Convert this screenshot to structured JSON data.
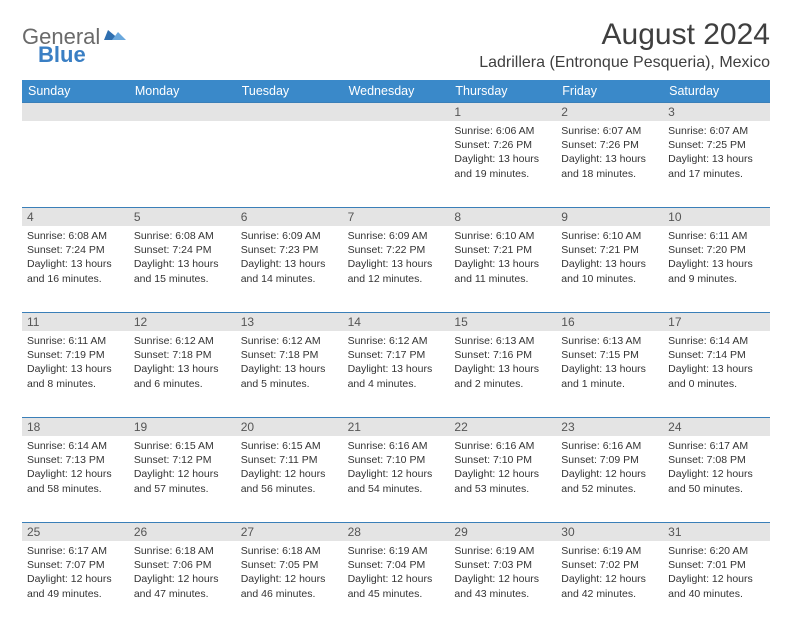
{
  "brand": {
    "part1": "General",
    "part2": "Blue"
  },
  "title": "August 2024",
  "location": "Ladrillera (Entronque Pesqueria), Mexico",
  "colors": {
    "header_bg": "#3a89c9",
    "header_text": "#ffffff",
    "daynum_bg": "#e4e4e4",
    "row_border": "#3a7fb8",
    "logo_gray": "#6a6a6a",
    "logo_blue": "#3a7fc4",
    "body_text": "#333333"
  },
  "typography": {
    "title_fontsize": 30,
    "location_fontsize": 16,
    "dayhead_fontsize": 12.5,
    "daynum_fontsize": 12,
    "cell_fontsize": 10.5
  },
  "day_headers": [
    "Sunday",
    "Monday",
    "Tuesday",
    "Wednesday",
    "Thursday",
    "Friday",
    "Saturday"
  ],
  "weeks": [
    {
      "nums": [
        "",
        "",
        "",
        "",
        "1",
        "2",
        "3"
      ],
      "cells": [
        null,
        null,
        null,
        null,
        {
          "sunrise": "6:06 AM",
          "sunset": "7:26 PM",
          "daylight": "13 hours and 19 minutes."
        },
        {
          "sunrise": "6:07 AM",
          "sunset": "7:26 PM",
          "daylight": "13 hours and 18 minutes."
        },
        {
          "sunrise": "6:07 AM",
          "sunset": "7:25 PM",
          "daylight": "13 hours and 17 minutes."
        }
      ]
    },
    {
      "nums": [
        "4",
        "5",
        "6",
        "7",
        "8",
        "9",
        "10"
      ],
      "cells": [
        {
          "sunrise": "6:08 AM",
          "sunset": "7:24 PM",
          "daylight": "13 hours and 16 minutes."
        },
        {
          "sunrise": "6:08 AM",
          "sunset": "7:24 PM",
          "daylight": "13 hours and 15 minutes."
        },
        {
          "sunrise": "6:09 AM",
          "sunset": "7:23 PM",
          "daylight": "13 hours and 14 minutes."
        },
        {
          "sunrise": "6:09 AM",
          "sunset": "7:22 PM",
          "daylight": "13 hours and 12 minutes."
        },
        {
          "sunrise": "6:10 AM",
          "sunset": "7:21 PM",
          "daylight": "13 hours and 11 minutes."
        },
        {
          "sunrise": "6:10 AM",
          "sunset": "7:21 PM",
          "daylight": "13 hours and 10 minutes."
        },
        {
          "sunrise": "6:11 AM",
          "sunset": "7:20 PM",
          "daylight": "13 hours and 9 minutes."
        }
      ]
    },
    {
      "nums": [
        "11",
        "12",
        "13",
        "14",
        "15",
        "16",
        "17"
      ],
      "cells": [
        {
          "sunrise": "6:11 AM",
          "sunset": "7:19 PM",
          "daylight": "13 hours and 8 minutes."
        },
        {
          "sunrise": "6:12 AM",
          "sunset": "7:18 PM",
          "daylight": "13 hours and 6 minutes."
        },
        {
          "sunrise": "6:12 AM",
          "sunset": "7:18 PM",
          "daylight": "13 hours and 5 minutes."
        },
        {
          "sunrise": "6:12 AM",
          "sunset": "7:17 PM",
          "daylight": "13 hours and 4 minutes."
        },
        {
          "sunrise": "6:13 AM",
          "sunset": "7:16 PM",
          "daylight": "13 hours and 2 minutes."
        },
        {
          "sunrise": "6:13 AM",
          "sunset": "7:15 PM",
          "daylight": "13 hours and 1 minute."
        },
        {
          "sunrise": "6:14 AM",
          "sunset": "7:14 PM",
          "daylight": "13 hours and 0 minutes."
        }
      ]
    },
    {
      "nums": [
        "18",
        "19",
        "20",
        "21",
        "22",
        "23",
        "24"
      ],
      "cells": [
        {
          "sunrise": "6:14 AM",
          "sunset": "7:13 PM",
          "daylight": "12 hours and 58 minutes."
        },
        {
          "sunrise": "6:15 AM",
          "sunset": "7:12 PM",
          "daylight": "12 hours and 57 minutes."
        },
        {
          "sunrise": "6:15 AM",
          "sunset": "7:11 PM",
          "daylight": "12 hours and 56 minutes."
        },
        {
          "sunrise": "6:16 AM",
          "sunset": "7:10 PM",
          "daylight": "12 hours and 54 minutes."
        },
        {
          "sunrise": "6:16 AM",
          "sunset": "7:10 PM",
          "daylight": "12 hours and 53 minutes."
        },
        {
          "sunrise": "6:16 AM",
          "sunset": "7:09 PM",
          "daylight": "12 hours and 52 minutes."
        },
        {
          "sunrise": "6:17 AM",
          "sunset": "7:08 PM",
          "daylight": "12 hours and 50 minutes."
        }
      ]
    },
    {
      "nums": [
        "25",
        "26",
        "27",
        "28",
        "29",
        "30",
        "31"
      ],
      "cells": [
        {
          "sunrise": "6:17 AM",
          "sunset": "7:07 PM",
          "daylight": "12 hours and 49 minutes."
        },
        {
          "sunrise": "6:18 AM",
          "sunset": "7:06 PM",
          "daylight": "12 hours and 47 minutes."
        },
        {
          "sunrise": "6:18 AM",
          "sunset": "7:05 PM",
          "daylight": "12 hours and 46 minutes."
        },
        {
          "sunrise": "6:19 AM",
          "sunset": "7:04 PM",
          "daylight": "12 hours and 45 minutes."
        },
        {
          "sunrise": "6:19 AM",
          "sunset": "7:03 PM",
          "daylight": "12 hours and 43 minutes."
        },
        {
          "sunrise": "6:19 AM",
          "sunset": "7:02 PM",
          "daylight": "12 hours and 42 minutes."
        },
        {
          "sunrise": "6:20 AM",
          "sunset": "7:01 PM",
          "daylight": "12 hours and 40 minutes."
        }
      ]
    }
  ],
  "labels": {
    "sunrise": "Sunrise:",
    "sunset": "Sunset:",
    "daylight": "Daylight:"
  }
}
